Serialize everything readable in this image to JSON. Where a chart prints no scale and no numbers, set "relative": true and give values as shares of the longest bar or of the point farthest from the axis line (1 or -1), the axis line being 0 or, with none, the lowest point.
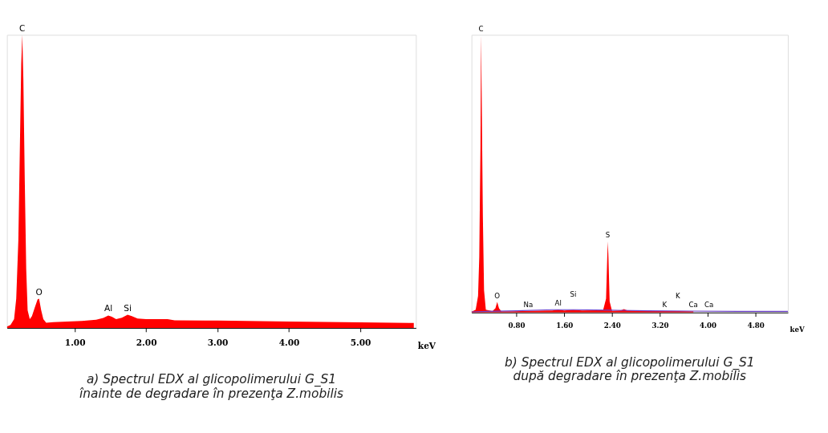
{
  "chart_data": [
    {
      "type": "area",
      "relative": true,
      "xlabel": "keV",
      "xlim": [
        0.05,
        5.78
      ],
      "xticks": [
        {
          "value": 1,
          "label": "1.00"
        },
        {
          "value": 2,
          "label": "2.00"
        },
        {
          "value": 3,
          "label": "3.00"
        },
        {
          "value": 4,
          "label": "4.00"
        },
        {
          "value": 5,
          "label": "5.00"
        }
      ],
      "series": [
        {
          "color": "#ff0000",
          "x": [
            0.05,
            0.1,
            0.15,
            0.18,
            0.21,
            0.23,
            0.25,
            0.265,
            0.28,
            0.3,
            0.32,
            0.34,
            0.37,
            0.4,
            0.44,
            0.48,
            0.5,
            0.53,
            0.56,
            0.6,
            0.7,
            0.9,
            1.1,
            1.3,
            1.4,
            1.47,
            1.52,
            1.58,
            1.66,
            1.74,
            1.8,
            1.88,
            2.0,
            2.3,
            2.4,
            3.0,
            4.0,
            5.0,
            5.75
          ],
          "values": [
            0.005,
            0.01,
            0.03,
            0.1,
            0.3,
            0.6,
            0.9,
            1.0,
            0.85,
            0.5,
            0.2,
            0.06,
            0.03,
            0.04,
            0.07,
            0.098,
            0.1,
            0.06,
            0.03,
            0.018,
            0.02,
            0.022,
            0.024,
            0.028,
            0.034,
            0.042,
            0.038,
            0.03,
            0.035,
            0.045,
            0.04,
            0.032,
            0.03,
            0.03,
            0.026,
            0.025,
            0.022,
            0.019,
            0.017
          ]
        }
      ],
      "annotations": [
        {
          "text": "C",
          "x": 0.265,
          "y": 1.0
        },
        {
          "text": "O",
          "x": 0.5,
          "y": 0.1
        },
        {
          "text": "Al",
          "x": 1.47,
          "y": 0.045
        },
        {
          "text": "Si",
          "x": 1.74,
          "y": 0.045
        },
        "a) Spectrul EDX al glicopolimerului    G_S1",
        "înainte de degradare în prezenţa Z.mobilis"
      ]
    },
    {
      "type": "area",
      "relative": true,
      "xlabel": "keV",
      "xlim": [
        0.05,
        5.34
      ],
      "xticks": [
        {
          "value": 0.8,
          "label": "0.80"
        },
        {
          "value": 1.6,
          "label": "1.60"
        },
        {
          "value": 2.4,
          "label": "2.40"
        },
        {
          "value": 3.2,
          "label": "3.20"
        },
        {
          "value": 4.0,
          "label": "4.00"
        },
        {
          "value": 4.8,
          "label": "4.80"
        }
      ],
      "series": [
        {
          "color": "#ff0000",
          "x": [
            0.05,
            0.12,
            0.16,
            0.18,
            0.2,
            0.21,
            0.22,
            0.24,
            0.26,
            0.29,
            0.4,
            0.45,
            0.48,
            0.51,
            0.55,
            0.75,
            1.0,
            1.4,
            1.5,
            1.6,
            1.75,
            1.9,
            2.25,
            2.3,
            2.32,
            2.33,
            2.34,
            2.36,
            2.4,
            2.55,
            2.6,
            2.65,
            3.0,
            3.5,
            3.76
          ],
          "values": [
            0.003,
            0.01,
            0.06,
            0.2,
            0.6,
            1.0,
            0.8,
            0.35,
            0.08,
            0.01,
            0.005,
            0.015,
            0.038,
            0.015,
            0.004,
            0.004,
            0.006,
            0.007,
            0.01,
            0.007,
            0.009,
            0.007,
            0.008,
            0.05,
            0.2,
            0.256,
            0.2,
            0.04,
            0.006,
            0.008,
            0.012,
            0.008,
            0.005,
            0.005,
            0.004
          ]
        },
        {
          "type": "line",
          "color": "#6a3dc8",
          "x": [
            0.05,
            0.3,
            0.8,
            1.4,
            1.8,
            2.5,
            3.0,
            3.76,
            4.5,
            5.34
          ],
          "values": [
            0.002,
            0.004,
            0.006,
            0.01,
            0.01,
            0.008,
            0.006,
            0.005,
            0.004,
            0.004
          ]
        }
      ],
      "annotations": [
        {
          "text": "C",
          "x": 0.21,
          "y": 1.0
        },
        {
          "text": "O",
          "x": 0.48,
          "y": 0.038
        },
        {
          "text": "Na",
          "x": 1.0,
          "y": 0.006
        },
        {
          "text": "Al",
          "x": 1.5,
          "y": 0.01
        },
        {
          "text": "Si",
          "x": 1.75,
          "y": 0.009
        },
        {
          "text": "S",
          "x": 2.33,
          "y": 0.256
        },
        {
          "text": "K",
          "x": 3.28,
          "y": 0.005
        },
        {
          "text": "K",
          "x": 3.5,
          "y": 0.005
        },
        {
          "text": "Ca",
          "x": 3.76,
          "y": 0.005
        },
        {
          "text": "Ca",
          "x": 4.02,
          "y": 0.005
        },
        "b) Spectrul EDX al glicopolimerului G_S1",
        "după degradare în prezenţa Z.mobilis"
      ]
    }
  ]
}
